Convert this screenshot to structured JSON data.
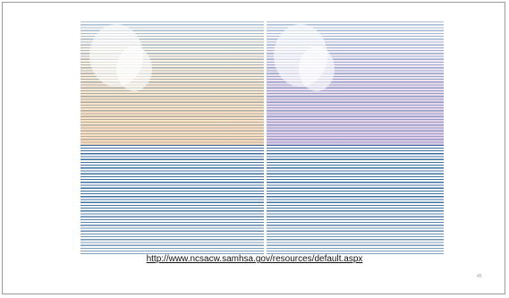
{
  "slide": {
    "link": "http://www.ncsacw.samhsa.gov/resources/default.aspx",
    "page_number": "45"
  }
}
